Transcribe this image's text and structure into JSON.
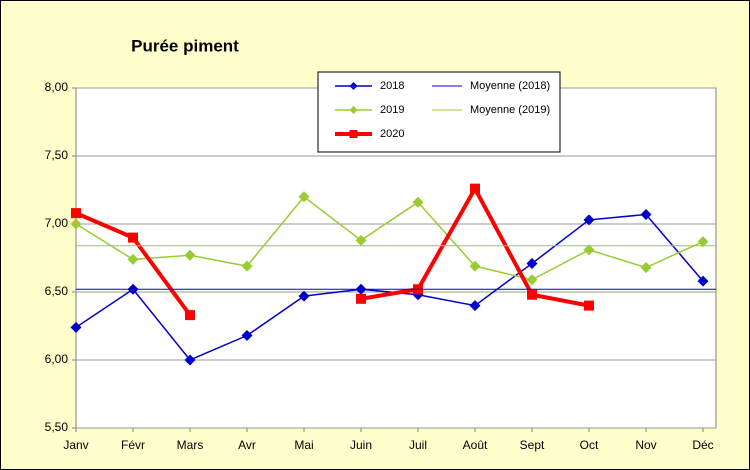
{
  "chart_data": {
    "type": "line",
    "title": "Purée piment",
    "categories": [
      "Janv",
      "Févr",
      "Mars",
      "Avr",
      "Mai",
      "Juin",
      "Juil",
      "Août",
      "Sept",
      "Oct",
      "Nov",
      "Déc"
    ],
    "series": [
      {
        "name": "2018",
        "color": "#0000cc",
        "marker": "diamond",
        "values": [
          6.24,
          6.52,
          6.0,
          6.18,
          6.47,
          6.52,
          6.48,
          6.4,
          6.71,
          7.03,
          7.07,
          6.58
        ]
      },
      {
        "name": "2019",
        "color": "#99cc33",
        "marker": "diamond",
        "values": [
          7.0,
          6.74,
          6.77,
          6.69,
          7.2,
          6.88,
          7.16,
          6.69,
          6.59,
          6.81,
          6.68,
          6.87
        ]
      },
      {
        "name": "2020",
        "color": "#ff0000",
        "marker": "square",
        "values": [
          7.08,
          6.9,
          6.33,
          null,
          null,
          6.45,
          6.52,
          7.26,
          6.48,
          6.4,
          null,
          null
        ]
      },
      {
        "name": "Moyenne (2018)",
        "color": "#0000cc",
        "value": 6.52
      },
      {
        "name": "Moyenne (2019)",
        "color": "#99cc33",
        "value": 6.84
      }
    ],
    "ylim": [
      5.5,
      8.0
    ],
    "yticks": [
      {
        "value": 5.5,
        "label": "5,50"
      },
      {
        "value": 6.0,
        "label": "6,00"
      },
      {
        "value": 6.5,
        "label": "6,50"
      },
      {
        "value": 7.0,
        "label": "7,00"
      },
      {
        "value": 7.5,
        "label": "7,50"
      },
      {
        "value": 8.0,
        "label": "8,00"
      }
    ],
    "grid": true
  }
}
